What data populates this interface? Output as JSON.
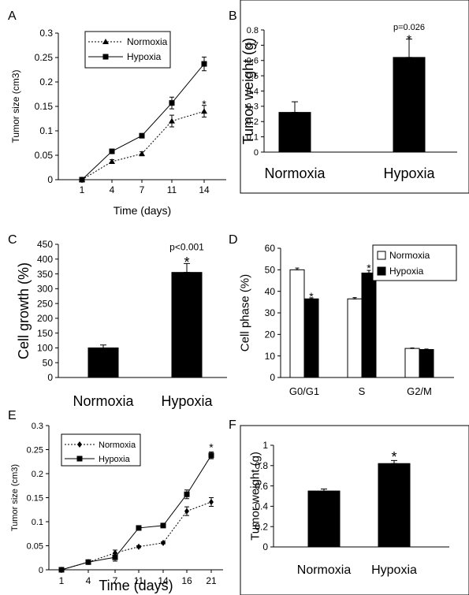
{
  "chart_data": [
    {
      "panel": "A",
      "type": "line",
      "title": "",
      "xlabel": "Time (days)",
      "ylabel": "Tumor size (cm3)",
      "ylim": [
        0,
        0.3
      ],
      "y_ticks": [
        "0",
        "0.05",
        "0.1",
        "0.15",
        "0.2",
        "0.25",
        "0.3"
      ],
      "categories": [
        "1",
        "4",
        "7",
        "11",
        "14"
      ],
      "legend_position": "top-left",
      "series": [
        {
          "name": "Normoxia",
          "style": "dotted",
          "marker": "triangle",
          "values": [
            0.0,
            0.037,
            0.053,
            0.12,
            0.14
          ],
          "errors": [
            0.0,
            0.004,
            0.004,
            0.012,
            0.012
          ]
        },
        {
          "name": "Hypoxia",
          "style": "solid",
          "marker": "square",
          "values": [
            0.0,
            0.058,
            0.09,
            0.157,
            0.237
          ],
          "errors": [
            0.0,
            0.003,
            0.003,
            0.012,
            0.014
          ]
        }
      ],
      "annotations": [
        {
          "text": "*",
          "category": "14",
          "y": 0.158
        }
      ]
    },
    {
      "panel": "B",
      "type": "bar",
      "title": "",
      "xlabel": "",
      "ylabel": "Tumor weight (g)",
      "ylim": [
        0,
        0.8
      ],
      "y_ticks": [
        "0",
        "0.1",
        "0.2",
        "0.3",
        "0.4",
        "0.5",
        "0.6",
        "0.7",
        "0.8"
      ],
      "categories": [
        "Normoxia",
        "Hypoxia"
      ],
      "values": [
        0.26,
        0.62
      ],
      "errors": [
        0.07,
        0.12
      ],
      "annotations": [
        {
          "text": "p=0.026",
          "category": "Hypoxia",
          "y": 0.8
        },
        {
          "text": "*",
          "category": "Hypoxia",
          "y": 0.755
        }
      ]
    },
    {
      "panel": "C",
      "type": "bar",
      "title": "",
      "xlabel": "",
      "ylabel": "Cell growth (%)",
      "ylim": [
        0,
        450
      ],
      "y_ticks": [
        "0",
        "50",
        "100",
        "150",
        "200",
        "250",
        "300",
        "350",
        "400",
        "450"
      ],
      "categories": [
        "Normoxia",
        "Hypoxia"
      ],
      "values": [
        100,
        355
      ],
      "errors": [
        10,
        30
      ],
      "annotations": [
        {
          "text": "p<0.001",
          "category": "Hypoxia",
          "y": 430
        },
        {
          "text": "*",
          "category": "Hypoxia",
          "y": 400
        }
      ]
    },
    {
      "panel": "D",
      "type": "bar",
      "title": "",
      "xlabel": "",
      "ylabel": "Cell phase (%)",
      "ylim": [
        0,
        60
      ],
      "y_ticks": [
        "0",
        "10",
        "20",
        "30",
        "40",
        "50",
        "60"
      ],
      "categories": [
        "G0/G1",
        "S",
        "G2/M"
      ],
      "legend_position": "top-right",
      "series": [
        {
          "name": "Normoxia",
          "color": "#ffffff",
          "values": [
            50,
            36.5,
            13.5
          ],
          "errors": [
            0.8,
            0.6,
            0.2
          ]
        },
        {
          "name": "Hypoxia",
          "color": "#000000",
          "values": [
            36.5,
            48.5,
            13
          ],
          "errors": [
            0.5,
            1.2,
            0.2
          ]
        }
      ],
      "annotations": [
        {
          "text": "*",
          "category": "G0/G1",
          "series": "Hypoxia",
          "y": 38.5
        },
        {
          "text": "*",
          "category": "S",
          "series": "Hypoxia",
          "y": 51.5
        }
      ]
    },
    {
      "panel": "E",
      "type": "line",
      "title": "",
      "xlabel": "Time (days)",
      "ylabel": "Tumor size (cm3)",
      "ylim": [
        0,
        0.3
      ],
      "y_ticks": [
        "0",
        "0.05",
        "0.1",
        "0.15",
        "0.2",
        "0.25",
        "0.3"
      ],
      "categories": [
        "1",
        "4",
        "7",
        "11",
        "14",
        "16",
        "21"
      ],
      "legend_position": "top-left",
      "series": [
        {
          "name": "Normoxia",
          "style": "dotted",
          "marker": "diamond",
          "values": [
            0.0,
            0.016,
            0.035,
            0.048,
            0.056,
            0.122,
            0.141
          ],
          "errors": [
            0.0,
            0.002,
            0.006,
            0.002,
            0.002,
            0.009,
            0.009
          ]
        },
        {
          "name": "Hypoxia",
          "style": "solid",
          "marker": "square",
          "values": [
            0.0,
            0.016,
            0.026,
            0.087,
            0.092,
            0.157,
            0.238
          ],
          "errors": [
            0.0,
            0.002,
            0.008,
            0.003,
            0.003,
            0.009,
            0.007
          ]
        }
      ],
      "annotations": [
        {
          "text": "*",
          "category": "21",
          "y": 0.258
        }
      ]
    },
    {
      "panel": "F",
      "type": "bar",
      "title": "",
      "xlabel": "",
      "ylabel": "Tumor weight (g)",
      "ylim": [
        0,
        1
      ],
      "y_ticks": [
        "0",
        "0.2",
        "0.4",
        "0.6",
        "0.8",
        "1"
      ],
      "categories": [
        "Normoxia",
        "Hypoxia"
      ],
      "values": [
        0.55,
        0.82
      ],
      "errors": [
        0.02,
        0.03
      ],
      "annotations": [
        {
          "text": "*",
          "category": "Hypoxia",
          "y": 0.9
        }
      ]
    }
  ]
}
